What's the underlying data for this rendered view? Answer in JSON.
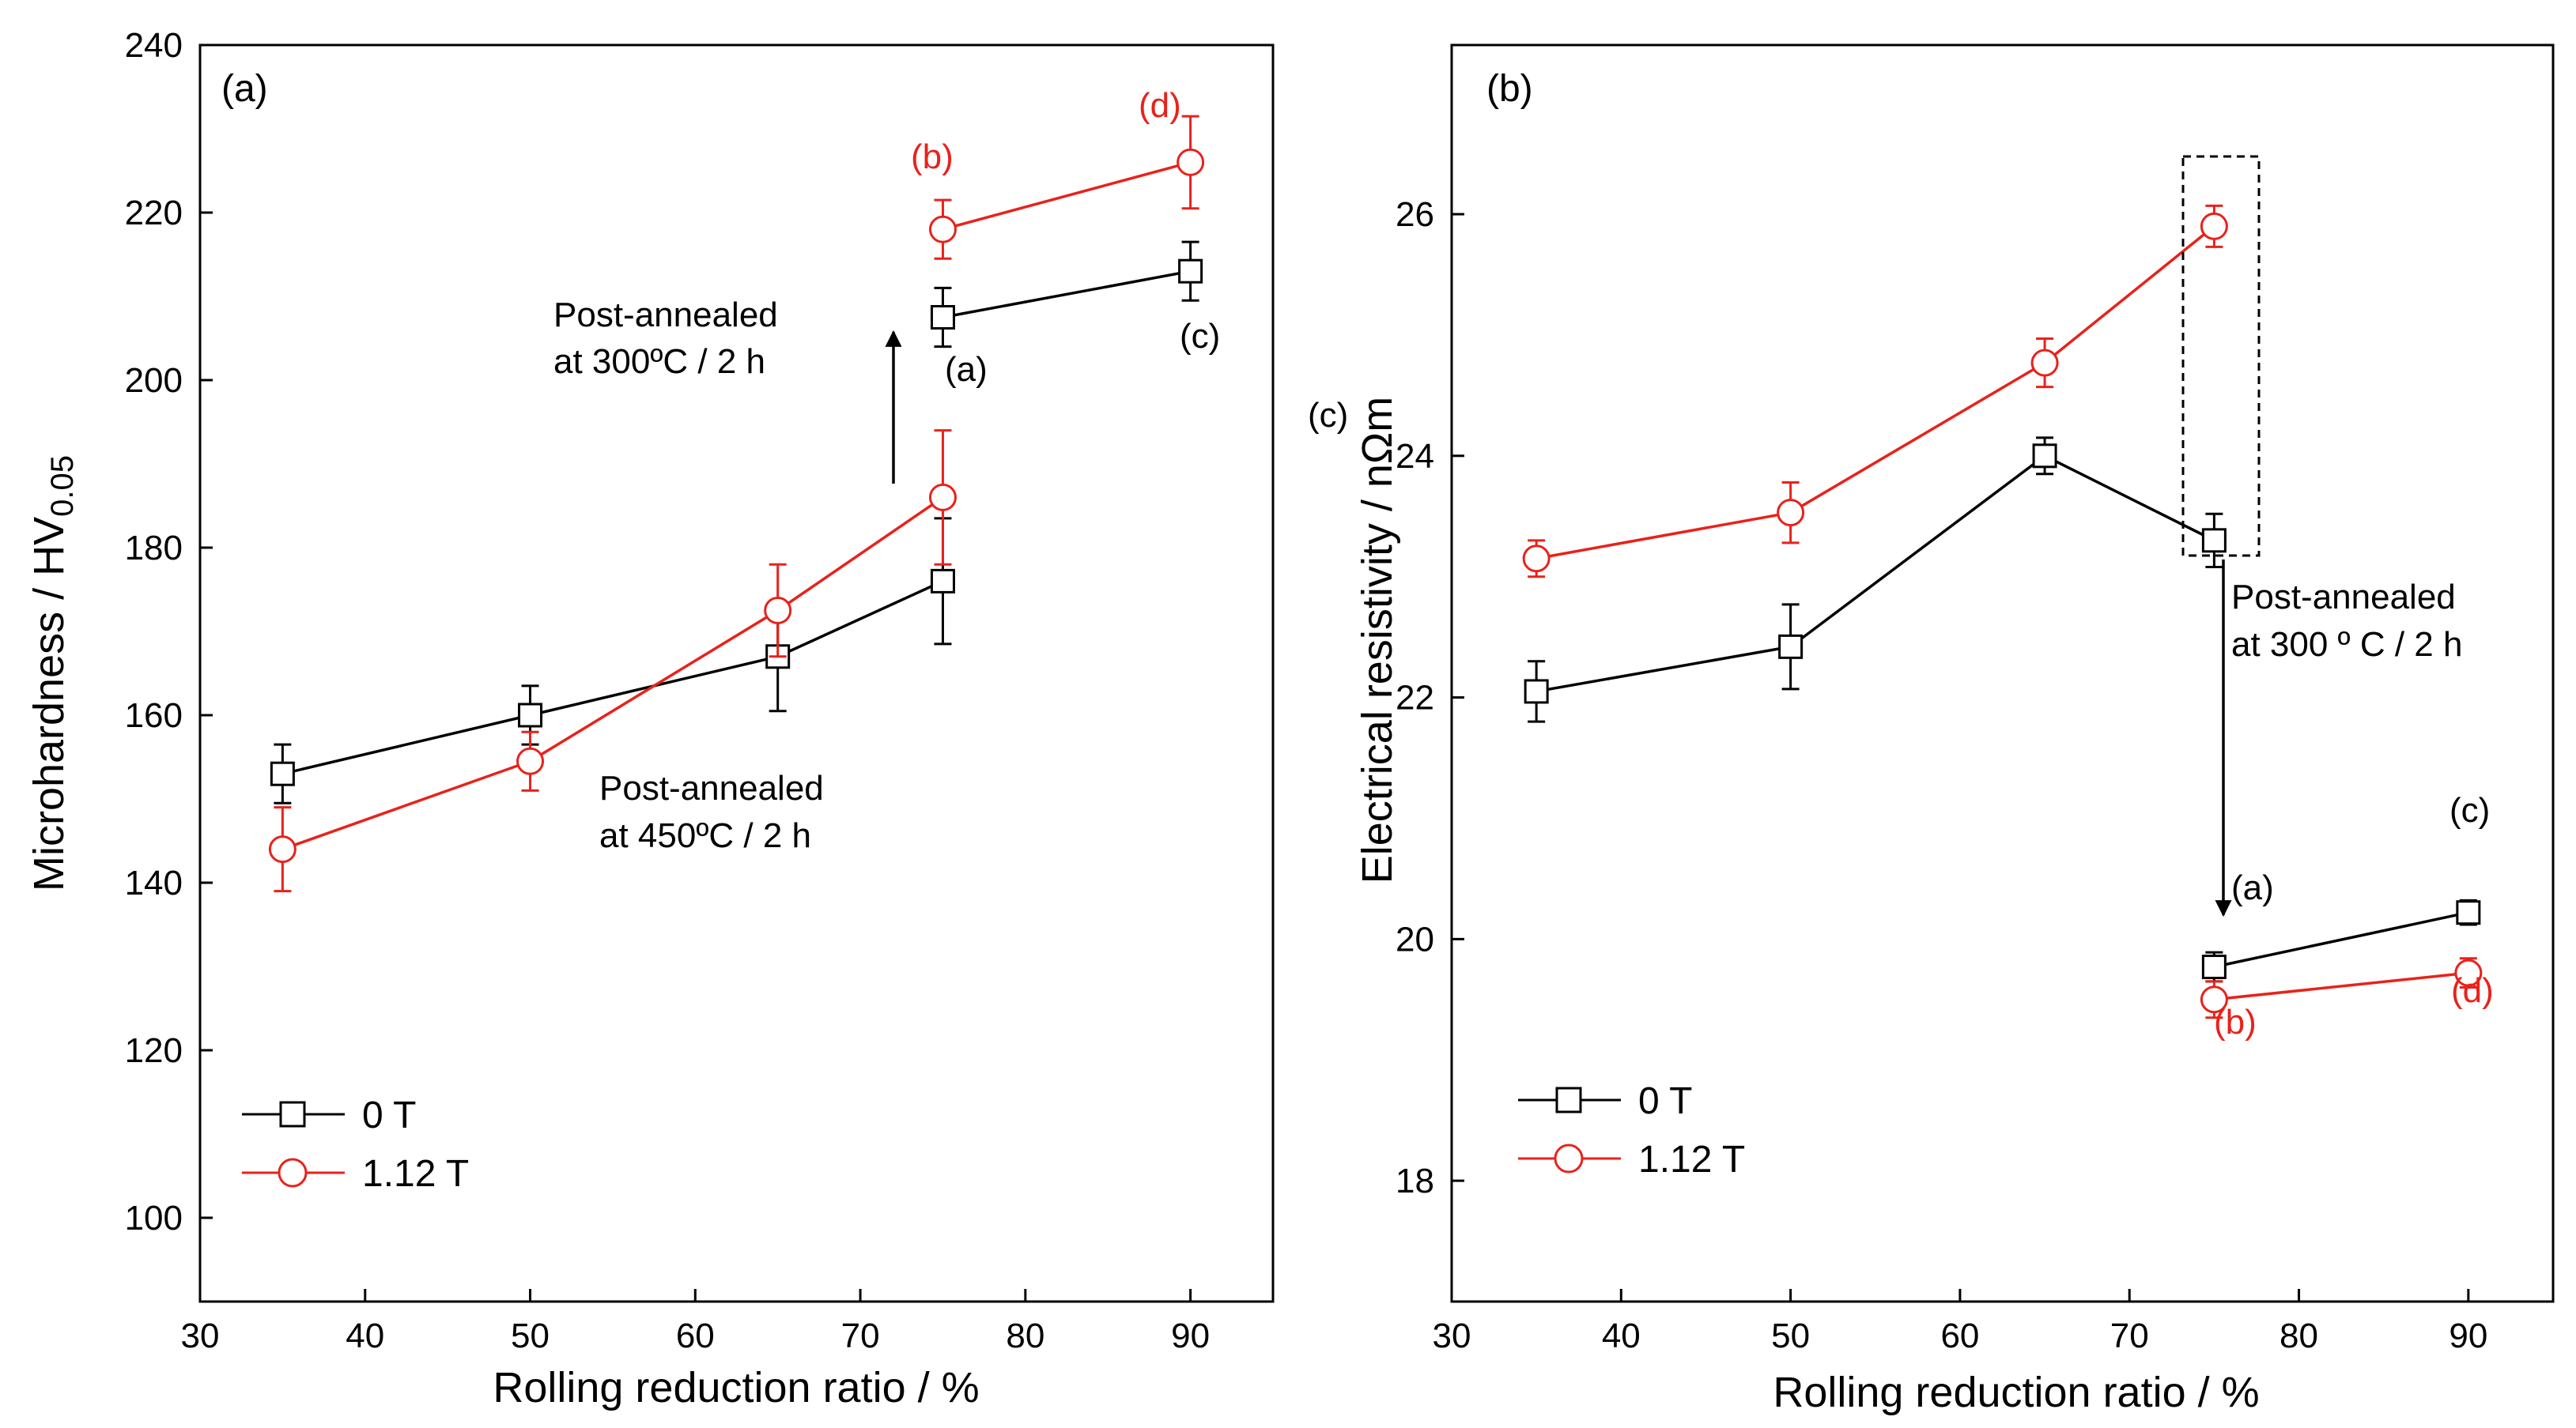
{
  "chart_data": [
    {
      "type": "line",
      "panel_label": "(a)",
      "xlabel": "Rolling reduction ratio / %",
      "ylabel_main": "Microhardness / HV",
      "ylabel_sub": "0.05",
      "xlim": [
        30,
        95
      ],
      "ylim": [
        90,
        240
      ],
      "xticks": [
        30,
        40,
        50,
        60,
        70,
        80,
        90
      ],
      "yticks": [
        100,
        120,
        140,
        160,
        180,
        200,
        220,
        240
      ],
      "series": [
        {
          "name": "0 T",
          "color": "#000000",
          "marker": "square",
          "x": [
            35,
            50,
            65,
            75
          ],
          "y": [
            153,
            160,
            167,
            176
          ],
          "err": [
            3.5,
            3.5,
            6.5,
            7.5
          ]
        },
        {
          "name": "1.12 T",
          "color": "#e8221b",
          "marker": "circle",
          "x": [
            35,
            50,
            65,
            75
          ],
          "y": [
            144,
            154.5,
            172.5,
            186
          ],
          "err": [
            5,
            3.5,
            5.5,
            8
          ]
        },
        {
          "name": "0 T post-annealed",
          "color": "#000000",
          "marker": "square",
          "x": [
            75,
            90
          ],
          "y": [
            207.5,
            213
          ],
          "err": [
            3.5,
            3.5
          ]
        },
        {
          "name": "1.12 T post-annealed",
          "color": "#e8221b",
          "marker": "circle",
          "x": [
            75,
            90
          ],
          "y": [
            218,
            226
          ],
          "err": [
            3.5,
            5.5
          ]
        }
      ],
      "annotations": {
        "post300_line1": "Post-annealed",
        "post300_line2": "at 300ºC / 2 h",
        "post450_line1": "Post-annealed",
        "post450_line2": "at 450ºC / 2 h",
        "lbl_a": "(a)",
        "lbl_b": "(b)",
        "lbl_c": "(c)",
        "lbl_d": "(d)"
      },
      "legend": [
        "0 T",
        "1.12 T"
      ]
    },
    {
      "type": "line",
      "panel_label": "(b)",
      "xlabel": "Rolling reduction ratio / %",
      "ylabel": "Electrical resistivity / nΩm",
      "xlim": [
        30,
        95
      ],
      "ylim": [
        17,
        27.4
      ],
      "xticks": [
        30,
        40,
        50,
        60,
        70,
        80,
        90
      ],
      "yticks": [
        18,
        20,
        22,
        24,
        26
      ],
      "series": [
        {
          "name": "0 T",
          "color": "#000000",
          "marker": "square",
          "x": [
            35,
            50,
            65,
            75
          ],
          "y": [
            22.05,
            22.42,
            24.0,
            23.3
          ],
          "err": [
            0.25,
            0.35,
            0.15,
            0.22
          ]
        },
        {
          "name": "1.12 T",
          "color": "#e8221b",
          "marker": "circle",
          "x": [
            35,
            50,
            65,
            75
          ],
          "y": [
            23.15,
            23.53,
            24.77,
            25.9
          ],
          "err": [
            0.15,
            0.25,
            0.2,
            0.17
          ]
        },
        {
          "name": "0 T post-annealed",
          "color": "#000000",
          "marker": "square",
          "x": [
            75,
            90
          ],
          "y": [
            19.77,
            20.22
          ],
          "err": [
            0.12,
            0.1
          ]
        },
        {
          "name": "1.12 T post-annealed",
          "color": "#e8221b",
          "marker": "circle",
          "x": [
            75,
            90
          ],
          "y": [
            19.5,
            19.72
          ],
          "err": [
            0.15,
            0.12
          ]
        }
      ],
      "annotations": {
        "post300_line1": "Post-annealed",
        "post300_line2": "at 300 º C / 2 h",
        "lbl_a": "(a)",
        "lbl_b": "(b)",
        "lbl_c": "(c)",
        "lbl_d": "(d)",
        "lbl_c_left": "(c)"
      },
      "legend": [
        "0 T",
        "1.12 T"
      ]
    }
  ]
}
